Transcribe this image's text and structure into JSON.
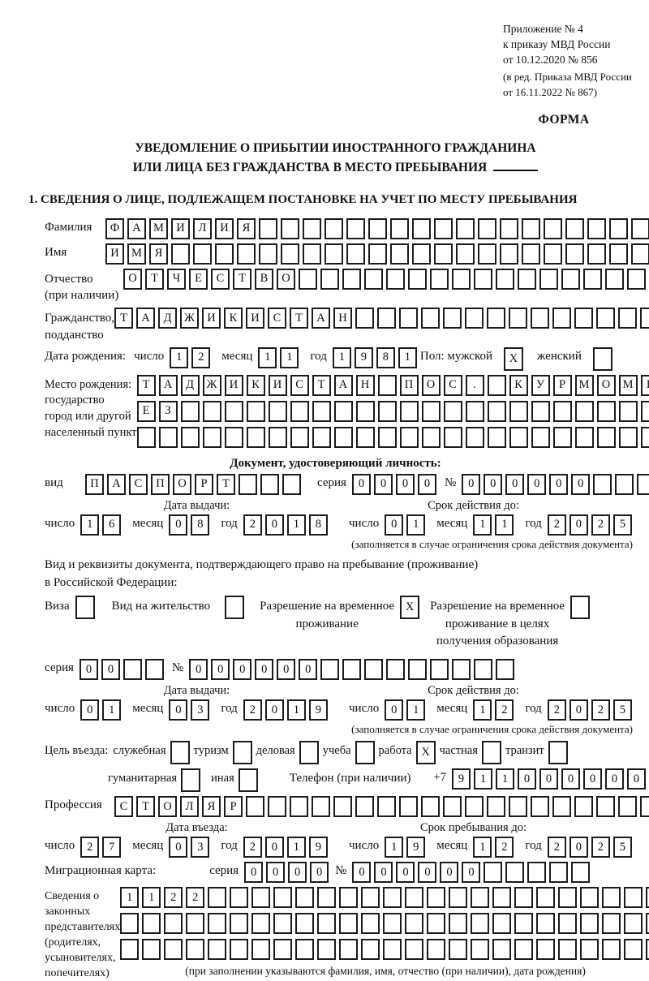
{
  "header": {
    "line1": "Приложение № 4",
    "line2": "к приказу МВД России",
    "line3": "от 10.12.2020 № 856",
    "line4": "(в ред. Приказа МВД России",
    "line5": "от 16.11.2022 № 867)",
    "form_label": "ФОРМА"
  },
  "title": {
    "line1": "УВЕДОМЛЕНИЕ О ПРИБЫТИИ ИНОСТРАННОГО ГРАЖДАНИНА",
    "line2": "ИЛИ ЛИЦА БЕЗ ГРАЖДАНСТВА В МЕСТО ПРЕБЫВАНИЯ"
  },
  "section1_heading": "1. СВЕДЕНИЯ О ЛИЦЕ, ПОДЛЕЖАЩЕМ ПОСТАНОВКЕ НА УЧЕТ ПО МЕСТУ ПРЕБЫВАНИЯ",
  "labels": {
    "day": "число",
    "month": "месяц",
    "year": "год",
    "series": "серия",
    "number": "№"
  },
  "person": {
    "surname": {
      "label": "Фамилия",
      "text": "ФАМИЛИЯ",
      "len": 25
    },
    "name": {
      "label": "Имя",
      "text": "ИМЯ",
      "len": 25
    },
    "patronymic": {
      "label": "Отчество",
      "label2": "(при наличии)",
      "text": "ОТЧЕСТВО",
      "len": 24
    },
    "citizenship": {
      "label": "Гражданство,",
      "label2": "подданство",
      "text": "ТАДЖИКИСТАН",
      "len": 25
    },
    "birth_date_label": "Дата рождения:",
    "birth": {
      "day": {
        "text": "12",
        "len": 2
      },
      "month": {
        "text": "11",
        "len": 2
      },
      "year": {
        "text": "1981",
        "len": 4
      }
    },
    "sex": {
      "male_label": "Пол: мужской",
      "male": "X",
      "female_label": "женский",
      "female": ""
    },
    "birthplace": {
      "labels": [
        "Место рождения:",
        "государство",
        "город или другой",
        "населенный пункт"
      ],
      "rows": [
        {
          "text": "ТАДЖИКИСТАН ПОС. КУРМОМБ",
          "len": 24
        },
        {
          "text": "ЕЗ",
          "len": 24
        },
        {
          "text": "",
          "len": 24
        }
      ]
    }
  },
  "id_doc": {
    "heading": "Документ, удостоверяющий личность:",
    "type_label": "вид",
    "type": {
      "text": "ПАСПОРТ",
      "len": 10
    },
    "series": {
      "text": "0000",
      "len": 4
    },
    "number": {
      "text": "000000",
      "len": 11
    },
    "issue_heading": "Дата выдачи:",
    "valid_heading": "Срок действия до:",
    "issue": {
      "day": {
        "text": "16",
        "len": 2
      },
      "month": {
        "text": "08",
        "len": 2
      },
      "year": {
        "text": "2018",
        "len": 4
      }
    },
    "valid": {
      "day": {
        "text": "01",
        "len": 2
      },
      "month": {
        "text": "11",
        "len": 2
      },
      "year": {
        "text": "2025",
        "len": 4
      }
    },
    "note": "(заполняется в случае ограничения срока действия документа)"
  },
  "stay_doc": {
    "intro_line1": "Вид и реквизиты документа, подтверждающего право на пребывание (проживание)",
    "intro_line2": "в Российской Федерации:",
    "options": [
      {
        "lines": [
          "Виза"
        ],
        "value": ""
      },
      {
        "lines": [
          "Вид на жительство"
        ],
        "value": ""
      },
      {
        "lines": [
          "Разрешение на временное",
          "проживание"
        ],
        "value": "X"
      },
      {
        "lines": [
          "Разрешение на временное",
          "проживание в целях",
          "получения образования"
        ],
        "value": ""
      }
    ],
    "series": {
      "text": "00",
      "len": 4
    },
    "number": {
      "text": "000000",
      "len": 15
    },
    "issue_heading": "Дата выдачи:",
    "valid_heading": "Срок действия до:",
    "issue": {
      "day": {
        "text": "01",
        "len": 2
      },
      "month": {
        "text": "03",
        "len": 2
      },
      "year": {
        "text": "2019",
        "len": 4
      }
    },
    "valid": {
      "day": {
        "text": "01",
        "len": 2
      },
      "month": {
        "text": "12",
        "len": 2
      },
      "year": {
        "text": "2025",
        "len": 4
      }
    },
    "note": "(заполняется в случае ограничения срока действия документа)"
  },
  "purpose": {
    "label": "Цель въезда:",
    "options": [
      {
        "label": "служебная",
        "value": ""
      },
      {
        "label": "туризм",
        "value": ""
      },
      {
        "label": "деловая",
        "value": ""
      },
      {
        "label": "учеба",
        "value": ""
      },
      {
        "label": "работа",
        "value": "X"
      },
      {
        "label": "частная",
        "value": ""
      },
      {
        "label": "транзит",
        "value": ""
      },
      {
        "label": "гуманитарная",
        "value": ""
      },
      {
        "label": "иная",
        "value": ""
      }
    ],
    "phone_label": "Телефон (при наличии)",
    "phone_prefix": "+7",
    "phone": {
      "text": "911000000",
      "len": 10
    }
  },
  "profession": {
    "label": "Профессия",
    "text": "СТОЛЯР",
    "len": 25
  },
  "entry_block": {
    "entry_heading": "Дата въезда:",
    "stay_heading": "Срок пребывания до:",
    "entry": {
      "day": {
        "text": "27",
        "len": 2
      },
      "month": {
        "text": "03",
        "len": 2
      },
      "year": {
        "text": "2019",
        "len": 4
      }
    },
    "stay": {
      "day": {
        "text": "19",
        "len": 2
      },
      "month": {
        "text": "12",
        "len": 2
      },
      "year": {
        "text": "2025",
        "len": 4
      }
    }
  },
  "migration_card": {
    "label": "Миграционная карта:",
    "series": {
      "text": "0000",
      "len": 4
    },
    "number": {
      "text": "000000",
      "len": 11
    }
  },
  "representatives": {
    "labels": [
      "Сведения о",
      "законных",
      "представителях",
      "(родителях,",
      "усыновителях,",
      "попечителях)"
    ],
    "rows": [
      {
        "text": "1122",
        "len": 25
      },
      {
        "text": "",
        "len": 25
      },
      {
        "text": "",
        "len": 25
      }
    ],
    "note": "(при заполнении указываются фамилия, имя, отчество (при наличии), дата рождения)"
  }
}
